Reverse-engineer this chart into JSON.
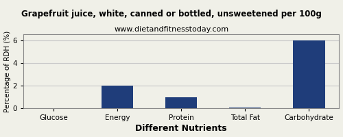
{
  "title": "Grapefruit juice, white, canned or bottled, unsweetened per 100g",
  "subtitle": "www.dietandfitnesstoday.com",
  "categories": [
    "Glucose",
    "Energy",
    "Protein",
    "Total Fat",
    "Carbohydrate"
  ],
  "values": [
    0.0,
    2.0,
    1.0,
    0.1,
    6.0
  ],
  "bar_color": "#1f3d7a",
  "xlabel": "Different Nutrients",
  "ylabel": "Percentage of RDH (%)",
  "ylim": [
    0,
    6.6
  ],
  "yticks": [
    0,
    2,
    4,
    6
  ],
  "background_color": "#f0f0e8",
  "plot_bg_color": "#f0f0e8",
  "title_fontsize": 8.5,
  "subtitle_fontsize": 8,
  "xlabel_fontsize": 9,
  "ylabel_fontsize": 7.5,
  "tick_fontsize": 7.5,
  "grid_color": "#c8c8c8",
  "border_color": "#888888"
}
